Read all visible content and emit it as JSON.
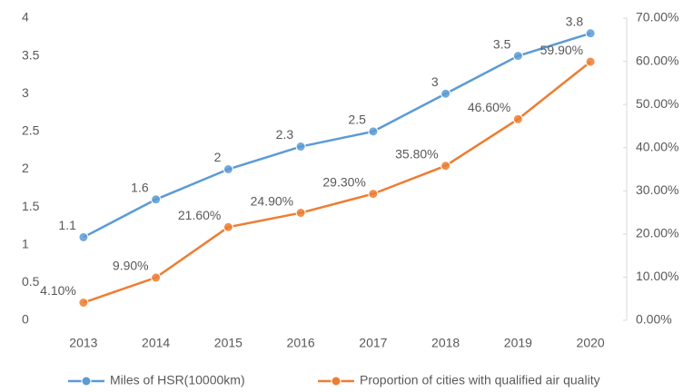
{
  "chart_data": {
    "type": "line",
    "categories": [
      "2013",
      "2014",
      "2015",
      "2016",
      "2017",
      "2018",
      "2019",
      "2020"
    ],
    "series": [
      {
        "name": "Miles of HSR(10000km)",
        "color": "#5b9bd5",
        "values": [
          1.1,
          1.6,
          2,
          2.3,
          2.5,
          3,
          3.5,
          3.8
        ]
      },
      {
        "name": "Proportion of cities with qualified air quality",
        "color": "#ed7d31",
        "axis": "y2",
        "values": [
          4.1,
          9.9,
          21.6,
          24.9,
          29.3,
          35.8,
          46.6,
          59.9
        ],
        "value_labels": [
          "4.10%",
          "9.90%",
          "21.60%",
          "24.90%",
          "29.30%",
          "35.80%",
          "46.60%",
          "59.90%"
        ]
      }
    ],
    "ylim": [
      0,
      4
    ],
    "yticks": [
      0,
      0.5,
      1,
      1.5,
      2,
      2.5,
      3,
      3.5,
      4
    ],
    "y2lim": [
      0,
      70
    ],
    "y2ticks": [
      {
        "value": 0,
        "label": "0.00%"
      },
      {
        "value": 10,
        "label": "10.00%"
      },
      {
        "value": 20,
        "label": "20.00%"
      },
      {
        "value": 30,
        "label": "30.00%"
      },
      {
        "value": 40,
        "label": "40.00%"
      },
      {
        "value": 50,
        "label": "50.00%"
      },
      {
        "value": 60,
        "label": "60.00%"
      },
      {
        "value": 70,
        "label": "70.00%"
      }
    ],
    "grid": false,
    "legend": "bottom"
  }
}
